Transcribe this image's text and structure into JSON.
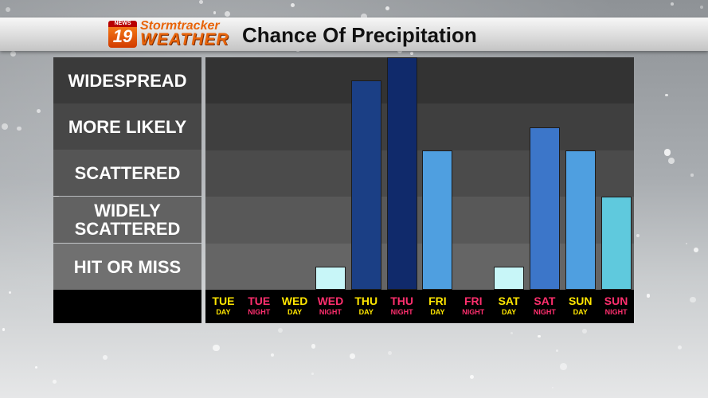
{
  "header": {
    "logo": {
      "news": "NEWS",
      "number": "19",
      "line1": "Stormtracker",
      "line2": "WEATHER"
    },
    "title": "Chance Of Precipitation"
  },
  "colors": {
    "day_label": "#ffe600",
    "night_label": "#ff2f6e",
    "bar_palette": [
      "#c8f6f8",
      "#1b3f85",
      "#102a6b",
      "#4f9fe0",
      "#3c76c9",
      "#5fc9dd"
    ]
  },
  "chart_data": {
    "type": "bar",
    "title": "Chance Of Precipitation",
    "y_levels": [
      "HIT OR MISS",
      "WIDELY SCATTERED",
      "SCATTERED",
      "MORE LIKELY",
      "WIDESPREAD"
    ],
    "ylim": [
      0,
      5
    ],
    "categories": [
      {
        "day": "TUE",
        "period": "DAY"
      },
      {
        "day": "TUE",
        "period": "NIGHT"
      },
      {
        "day": "WED",
        "period": "DAY"
      },
      {
        "day": "WED",
        "period": "NIGHT"
      },
      {
        "day": "THU",
        "period": "DAY"
      },
      {
        "day": "THU",
        "period": "NIGHT"
      },
      {
        "day": "FRI",
        "period": "DAY"
      },
      {
        "day": "FRI",
        "period": "NIGHT"
      },
      {
        "day": "SAT",
        "period": "DAY"
      },
      {
        "day": "SAT",
        "period": "NIGHT"
      },
      {
        "day": "SUN",
        "period": "DAY"
      },
      {
        "day": "SUN",
        "period": "NIGHT"
      }
    ],
    "values": [
      0,
      0,
      0,
      0.5,
      4.5,
      5,
      3,
      0,
      0.5,
      3.5,
      3,
      2
    ],
    "bar_colors": [
      "#c8f6f8",
      "#c8f6f8",
      "#c8f6f8",
      "#c8f6f8",
      "#1b3f85",
      "#102a6b",
      "#4f9fe0",
      "#4f9fe0",
      "#c8f6f8",
      "#3c76c9",
      "#4f9fe0",
      "#5fc9dd"
    ],
    "grid": true,
    "legend": "none"
  }
}
